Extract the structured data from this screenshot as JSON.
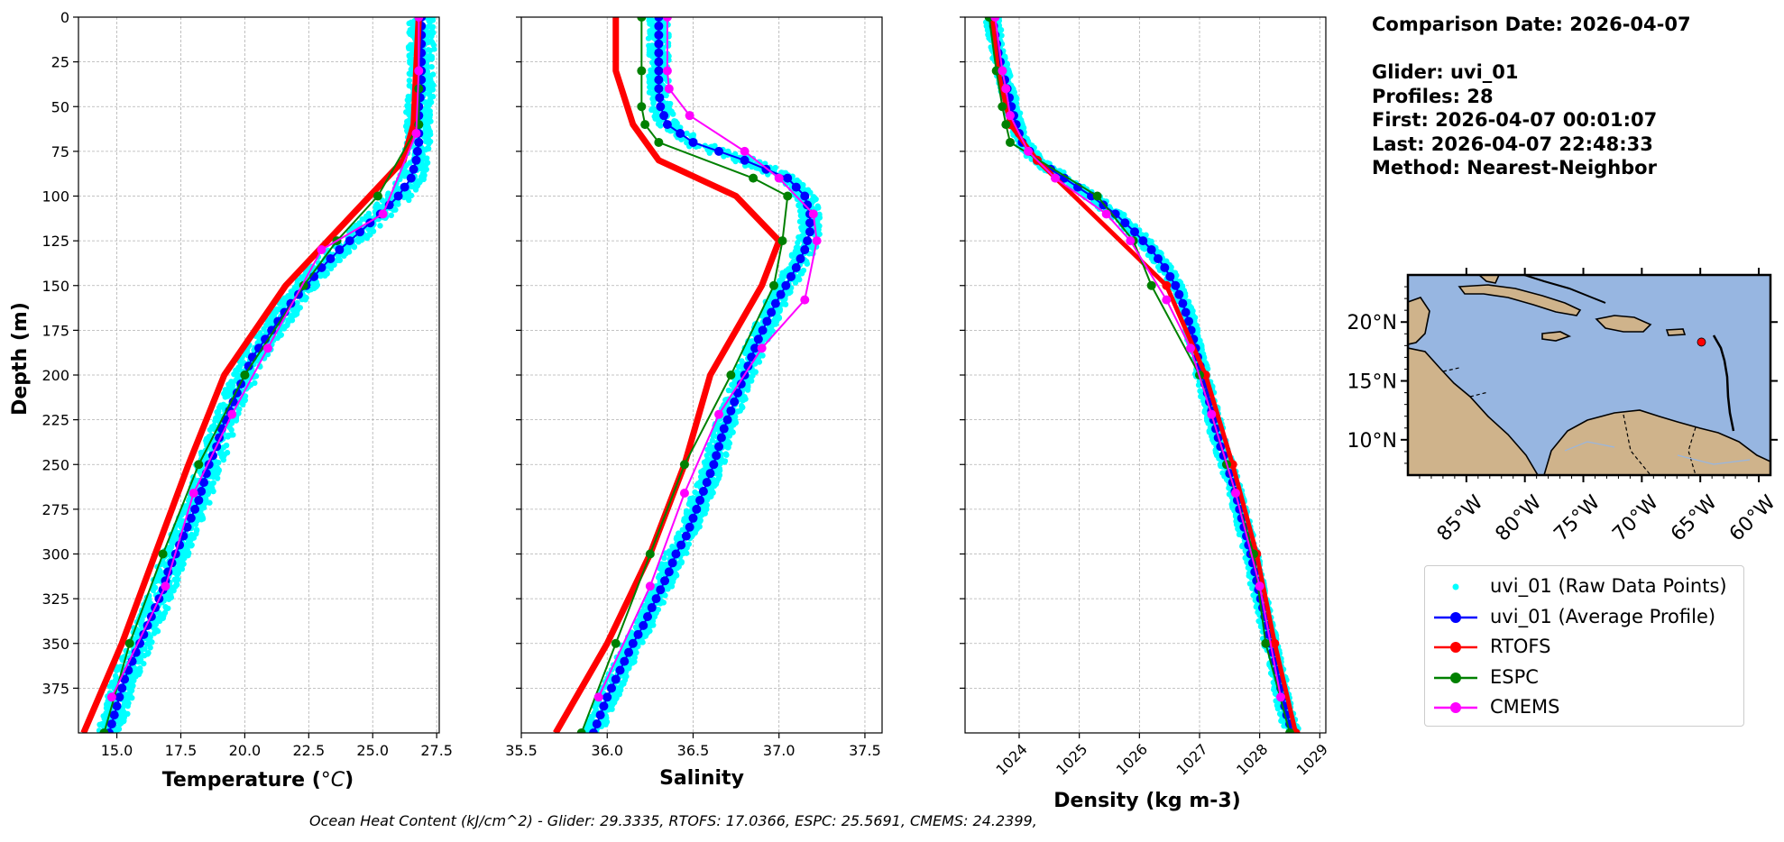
{
  "info": {
    "comparison_date": "Comparison Date: 2026-04-07",
    "glider": "Glider: uvi_01",
    "profiles": "Profiles: 28",
    "first": "First: 2026-04-07 00:01:07",
    "last": "Last: 2026-04-07 22:48:33",
    "method": "Method: Nearest-Neighbor"
  },
  "footer": "Ocean Heat Content (kJ/cm^2) - Glider: 29.3335,  RTOFS: 17.0366,  ESPC: 25.5691,  CMEMS: 24.2399,",
  "legend": [
    {
      "label": "uvi_01 (Raw Data Points)",
      "color": "#00ffff",
      "style": "dot"
    },
    {
      "label": "uvi_01 (Average Profile)",
      "color": "#0000ff",
      "style": "line-marker"
    },
    {
      "label": "RTOFS",
      "color": "#ff0000",
      "style": "line-marker"
    },
    {
      "label": "ESPC",
      "color": "#008000",
      "style": "line-marker"
    },
    {
      "label": "CMEMS",
      "color": "#ff00ff",
      "style": "line-marker"
    }
  ],
  "map": {
    "lat_ticks": [
      "20°N",
      "15°N",
      "10°N"
    ],
    "lon_ticks": [
      "85°W",
      "80°W",
      "75°W",
      "70°W",
      "65°W",
      "60°W"
    ],
    "lat_values": [
      20,
      15,
      10
    ],
    "lon_values": [
      -85,
      -80,
      -75,
      -70,
      -65,
      -60
    ],
    "extent": {
      "lon": [
        -90,
        -59
      ],
      "lat": [
        7,
        24
      ]
    },
    "ocean_color": "#97b6e1",
    "land_color": "#cfb38b",
    "glider_position": {
      "lon": -64.9,
      "lat": 18.3
    },
    "marker_color": "#ff0000"
  },
  "chart_data": [
    {
      "type": "line",
      "xlabel_pre": "Temperature (",
      "xlabel_unit": "°C",
      "xlabel_post": ")",
      "ylabel": "Depth (m)",
      "xlim": [
        13.5,
        27.6
      ],
      "ylim": [
        400,
        0
      ],
      "x_ticks": [
        15.0,
        17.5,
        20.0,
        22.5,
        25.0,
        27.5
      ],
      "x_tick_labels": [
        "15.0",
        "17.5",
        "20.0",
        "22.5",
        "25.0",
        "27.5"
      ],
      "y_ticks": [
        0,
        25,
        50,
        75,
        100,
        125,
        150,
        175,
        200,
        225,
        250,
        275,
        300,
        325,
        350,
        375
      ],
      "y_tick_labels": [
        "0",
        "25",
        "50",
        "75",
        "100",
        "125",
        "150",
        "175",
        "200",
        "225",
        "250",
        "275",
        "300",
        "325",
        "350",
        "375"
      ],
      "grid": true,
      "glider_depth": [
        0,
        10,
        20,
        30,
        40,
        50,
        60,
        70,
        80,
        90,
        100,
        110,
        120,
        130,
        140,
        150,
        160,
        170,
        180,
        190,
        200,
        210,
        220,
        230,
        240,
        250,
        260,
        270,
        280,
        290,
        300,
        310,
        320,
        330,
        340,
        350,
        360,
        370,
        380,
        390,
        400
      ],
      "glider_value": [
        26.9,
        26.9,
        26.9,
        26.9,
        26.9,
        26.8,
        26.8,
        26.8,
        26.7,
        26.5,
        26.0,
        25.3,
        24.5,
        23.7,
        23.0,
        22.4,
        21.8,
        21.3,
        20.8,
        20.3,
        20.0,
        19.7,
        19.4,
        19.1,
        18.9,
        18.6,
        18.4,
        18.2,
        17.9,
        17.6,
        17.3,
        17.0,
        16.8,
        16.5,
        16.2,
        15.9,
        15.6,
        15.3,
        15.1,
        14.9,
        14.7
      ],
      "glider_spread": 0.5,
      "models": [
        {
          "name": "RTOFS",
          "color": "#ff0000",
          "lw": 7,
          "ms": 0,
          "depth": [
            0,
            30,
            60,
            80,
            150,
            200,
            250,
            300,
            350,
            400
          ],
          "value": [
            26.8,
            26.7,
            26.6,
            26.2,
            21.6,
            19.2,
            17.8,
            16.5,
            15.2,
            13.7
          ]
        },
        {
          "name": "ESPC",
          "color": "#008000",
          "lw": 2,
          "ms": 10,
          "depth": [
            0,
            40,
            60,
            100,
            125,
            150,
            200,
            250,
            300,
            350,
            400
          ],
          "value": [
            26.8,
            26.8,
            26.8,
            25.2,
            23.6,
            22.3,
            20.0,
            18.2,
            16.8,
            15.5,
            14.5
          ]
        },
        {
          "name": "CMEMS",
          "color": "#ff00ff",
          "lw": 2,
          "ms": 10,
          "depth": [
            0,
            30,
            65,
            110,
            130,
            185,
            222,
            266,
            318,
            380
          ],
          "value": [
            26.8,
            26.8,
            26.7,
            25.4,
            23.0,
            20.9,
            19.5,
            18.0,
            16.9,
            14.8
          ]
        }
      ]
    },
    {
      "type": "line",
      "xlabel": "Salinity",
      "xlim": [
        35.5,
        37.6
      ],
      "ylim": [
        400,
        0
      ],
      "x_ticks": [
        35.5,
        36.0,
        36.5,
        37.0,
        37.5
      ],
      "x_tick_labels": [
        "35.5",
        "36.0",
        "36.5",
        "37.0",
        "37.5"
      ],
      "y_ticks": [
        0,
        25,
        50,
        75,
        100,
        125,
        150,
        175,
        200,
        225,
        250,
        275,
        300,
        325,
        350,
        375
      ],
      "grid": true,
      "glider_depth": [
        0,
        10,
        20,
        30,
        40,
        50,
        60,
        70,
        80,
        90,
        100,
        110,
        120,
        130,
        140,
        150,
        160,
        170,
        180,
        190,
        200,
        210,
        220,
        230,
        240,
        250,
        260,
        270,
        280,
        290,
        300,
        310,
        320,
        330,
        340,
        350,
        360,
        370,
        380,
        390,
        400
      ],
      "glider_value": [
        36.3,
        36.3,
        36.3,
        36.3,
        36.3,
        36.31,
        36.35,
        36.5,
        36.8,
        37.05,
        37.15,
        37.18,
        37.18,
        37.15,
        37.1,
        37.04,
        36.98,
        36.93,
        36.88,
        36.84,
        36.8,
        36.76,
        36.72,
        36.68,
        36.65,
        36.62,
        36.58,
        36.54,
        36.5,
        36.46,
        36.4,
        36.36,
        36.31,
        36.26,
        36.21,
        36.15,
        36.1,
        36.05,
        36.0,
        35.96,
        35.92
      ],
      "glider_spread": 0.06,
      "models": [
        {
          "name": "RTOFS",
          "color": "#ff0000",
          "lw": 7,
          "ms": 0,
          "depth": [
            0,
            30,
            60,
            80,
            100,
            125,
            150,
            200,
            250,
            300,
            350,
            400
          ],
          "value": [
            36.05,
            36.05,
            36.15,
            36.3,
            36.75,
            37.0,
            36.9,
            36.6,
            36.45,
            36.25,
            36.0,
            35.7
          ]
        },
        {
          "name": "ESPC",
          "color": "#008000",
          "lw": 2,
          "ms": 10,
          "depth": [
            0,
            30,
            50,
            60,
            70,
            90,
            100,
            125,
            150,
            200,
            250,
            300,
            350,
            400
          ],
          "value": [
            36.2,
            36.2,
            36.2,
            36.22,
            36.3,
            36.85,
            37.05,
            37.02,
            36.97,
            36.72,
            36.45,
            36.25,
            36.05,
            35.85
          ]
        },
        {
          "name": "CMEMS",
          "color": "#ff00ff",
          "lw": 2,
          "ms": 10,
          "depth": [
            0,
            30,
            40,
            55,
            75,
            90,
            110,
            125,
            158,
            185,
            222,
            266,
            318,
            380
          ],
          "value": [
            36.35,
            36.35,
            36.36,
            36.48,
            36.8,
            37.0,
            37.2,
            37.22,
            37.15,
            36.9,
            36.65,
            36.45,
            36.25,
            35.95
          ]
        }
      ]
    },
    {
      "type": "line",
      "xlabel": "Density (kg m-3)",
      "xlim": [
        1023.1,
        1029.1
      ],
      "ylim": [
        400,
        0
      ],
      "x_ticks": [
        1024,
        1025,
        1026,
        1027,
        1028,
        1029
      ],
      "x_tick_labels": [
        "1024",
        "1025",
        "1026",
        "1027",
        "1028",
        "1029"
      ],
      "y_ticks": [
        0,
        25,
        50,
        75,
        100,
        125,
        150,
        175,
        200,
        225,
        250,
        275,
        300,
        325,
        350,
        375
      ],
      "grid": true,
      "glider_depth": [
        0,
        10,
        20,
        30,
        40,
        50,
        60,
        70,
        80,
        90,
        100,
        110,
        120,
        130,
        140,
        150,
        160,
        170,
        180,
        190,
        200,
        210,
        220,
        230,
        240,
        250,
        260,
        270,
        280,
        290,
        300,
        310,
        320,
        330,
        340,
        350,
        360,
        370,
        380,
        390,
        400
      ],
      "glider_value": [
        1023.55,
        1023.6,
        1023.65,
        1023.72,
        1023.8,
        1023.87,
        1023.95,
        1024.05,
        1024.3,
        1024.75,
        1025.2,
        1025.6,
        1025.92,
        1026.2,
        1026.42,
        1026.6,
        1026.72,
        1026.82,
        1026.9,
        1026.97,
        1027.05,
        1027.13,
        1027.2,
        1027.27,
        1027.35,
        1027.45,
        1027.55,
        1027.63,
        1027.7,
        1027.78,
        1027.85,
        1027.92,
        1027.98,
        1028.05,
        1028.12,
        1028.18,
        1028.25,
        1028.32,
        1028.38,
        1028.45,
        1028.55
      ],
      "glider_spread": 0.12,
      "models": [
        {
          "name": "RTOFS",
          "color": "#ff0000",
          "lw": 5,
          "ms": 10,
          "depth": [
            0,
            30,
            60,
            80,
            150,
            200,
            250,
            300,
            350,
            400
          ],
          "value": [
            1023.55,
            1023.65,
            1023.85,
            1024.3,
            1026.45,
            1027.1,
            1027.55,
            1027.95,
            1028.25,
            1028.6
          ]
        },
        {
          "name": "ESPC",
          "color": "#008000",
          "lw": 2,
          "ms": 10,
          "depth": [
            0,
            30,
            50,
            60,
            70,
            100,
            125,
            150,
            200,
            250,
            300,
            350,
            400
          ],
          "value": [
            1023.5,
            1023.62,
            1023.72,
            1023.78,
            1023.85,
            1025.3,
            1025.9,
            1026.2,
            1027.0,
            1027.45,
            1027.9,
            1028.1,
            1028.5
          ]
        },
        {
          "name": "CMEMS",
          "color": "#ff00ff",
          "lw": 2,
          "ms": 10,
          "depth": [
            0,
            30,
            40,
            55,
            75,
            90,
            110,
            125,
            158,
            185,
            222,
            266,
            318,
            380
          ],
          "value": [
            1023.6,
            1023.72,
            1023.78,
            1023.85,
            1024.15,
            1024.6,
            1025.45,
            1025.85,
            1026.45,
            1026.85,
            1027.2,
            1027.6,
            1028.0,
            1028.35
          ]
        }
      ]
    }
  ]
}
